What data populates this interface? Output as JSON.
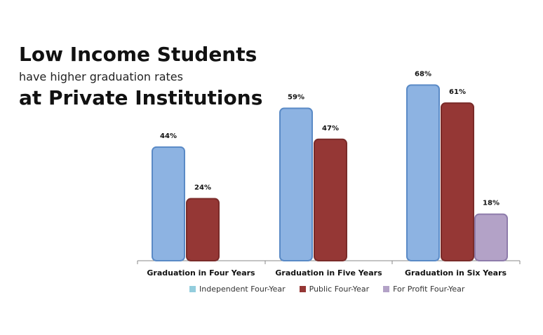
{
  "headline": {
    "line1": "Low Income Students",
    "line2": "have higher graduation rates",
    "line3": "at Private Institutions"
  },
  "chart_data": {
    "type": "bar",
    "categories": [
      "Graduation in Four Years",
      "Graduation in Five Years",
      "Graduation in Six Years"
    ],
    "series": [
      {
        "name": "Independent Four-Year",
        "color": "#8DB3E2",
        "stroke": "#5A8AC6",
        "values": [
          44,
          59,
          68
        ],
        "labels": [
          "44%",
          "59%",
          "68%"
        ]
      },
      {
        "name": "Public Four-Year",
        "color": "#953735",
        "stroke": "#7A2B29",
        "values": [
          24,
          47,
          61
        ],
        "labels": [
          "24%",
          "47%",
          "61%"
        ]
      },
      {
        "name": "For Profit Four-Year",
        "color": "#B3A2C7",
        "stroke": "#8E7CAB",
        "values": [
          null,
          null,
          18
        ],
        "labels": [
          "",
          "",
          "18%"
        ]
      }
    ],
    "ylim": [
      0,
      70
    ],
    "grid": false,
    "legend_position": "bottom"
  },
  "legend_swatches": {
    "Independent Four-Year": "#93CDDD",
    "Public Four-Year": "#953735",
    "For Profit Four-Year": "#B3A2C7"
  }
}
